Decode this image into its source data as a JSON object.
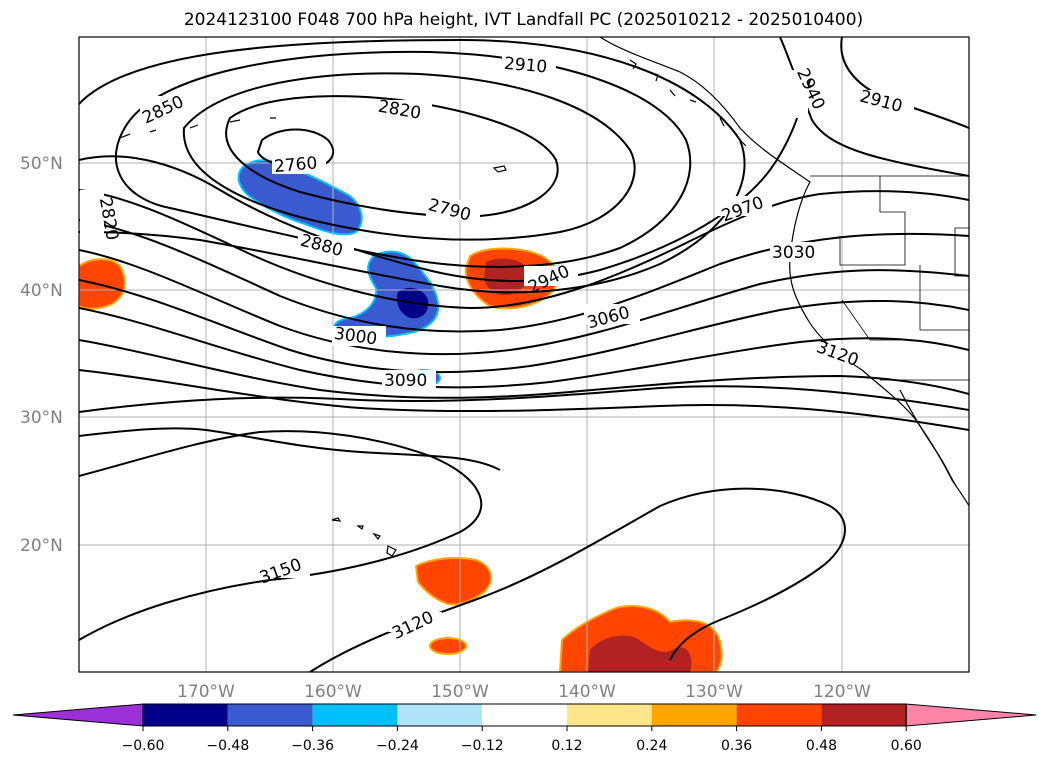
{
  "title": "2024123100 F048 700 hPa height, IVT Landfall PC (2025010212 - 2025010400)",
  "map": {
    "lat_labels": [
      "50°N",
      "40°N",
      "30°N",
      "20°N"
    ],
    "lon_labels": [
      "170°W",
      "160°W",
      "150°W",
      "140°W",
      "130°W",
      "120°W"
    ],
    "contour_labels": [
      "2910",
      "2850",
      "2820",
      "2760",
      "2790",
      "2820",
      "2880",
      "2940",
      "2970",
      "3030",
      "3060",
      "3000",
      "3090",
      "3120",
      "2910",
      "2940",
      "3150",
      "3120"
    ]
  },
  "colorbar": {
    "ticks": [
      "−0.60",
      "−0.48",
      "−0.36",
      "−0.24",
      "−0.12",
      "0.12",
      "0.24",
      "0.36",
      "0.48",
      "0.60"
    ],
    "colors": [
      "#9b30d9",
      "#00008b",
      "#3a5bcf",
      "#00bfff",
      "#aee3fa",
      "#ffffff",
      "#fde68a",
      "#ffa500",
      "#ff4500",
      "#b22222",
      "#ff85a8"
    ]
  }
}
